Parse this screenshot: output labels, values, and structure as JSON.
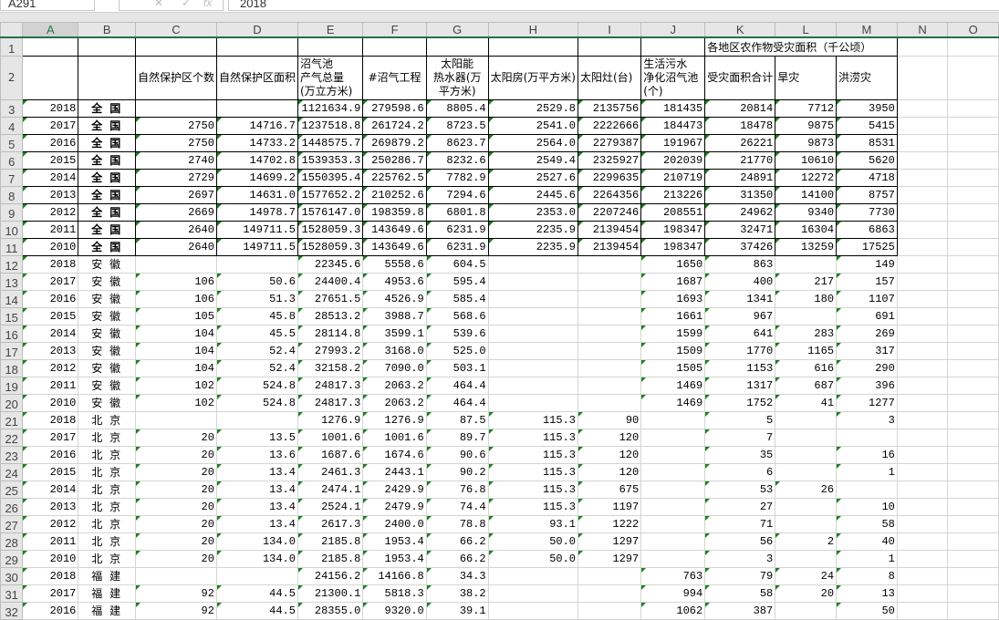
{
  "formula_bar": {
    "name_box": "A291",
    "cancel_icon": "✕",
    "enter_icon": "✓",
    "fx_label": "fx",
    "formula": "2018"
  },
  "columns": [
    "A",
    "B",
    "C",
    "D",
    "E",
    "F",
    "G",
    "H",
    "I",
    "J",
    "K",
    "L",
    "M",
    "N",
    "O"
  ],
  "selected_column": "A",
  "row1": {
    "K": "各地区农作物受灾面积（千公顷）"
  },
  "headers": {
    "C": "自然保护区个数",
    "D": "自然保护区面积",
    "E": "沼气池\n产气总量\n(万立方米)",
    "F": "#沼气工程",
    "G": "太阳能\n热水器(万\n平方米)",
    "H": "太阳房(万平方米)",
    "I": "太阳灶(台)",
    "J": "生活污水\n净化沼气池\n(个)",
    "K": "受灾面积合计",
    "L": "旱灾",
    "M": "洪涝灾"
  },
  "accent_color": "#217346",
  "rows": [
    [
      3,
      "2018",
      "全 国",
      "",
      "",
      "1121634.9",
      "279598.6",
      "8805.4",
      "2529.8",
      "2135756",
      "181435",
      "20814",
      "7712",
      "3950"
    ],
    [
      4,
      "2017",
      "全 国",
      "2750",
      "14716.7",
      "1237518.8",
      "261724.2",
      "8723.5",
      "2541.0",
      "2222666",
      "184473",
      "18478",
      "9875",
      "5415"
    ],
    [
      5,
      "2016",
      "全 国",
      "2750",
      "14733.2",
      "1448575.7",
      "269879.2",
      "8623.7",
      "2564.0",
      "2279387",
      "191967",
      "26221",
      "9873",
      "8531"
    ],
    [
      6,
      "2015",
      "全 国",
      "2740",
      "14702.8",
      "1539353.3",
      "250286.7",
      "8232.6",
      "2549.4",
      "2325927",
      "202039",
      "21770",
      "10610",
      "5620"
    ],
    [
      7,
      "2014",
      "全 国",
      "2729",
      "14699.2",
      "1550395.4",
      "225762.5",
      "7782.9",
      "2527.6",
      "2299635",
      "210719",
      "24891",
      "12272",
      "4718"
    ],
    [
      8,
      "2013",
      "全 国",
      "2697",
      "14631.0",
      "1577652.2",
      "210252.6",
      "7294.6",
      "2445.6",
      "2264356",
      "213226",
      "31350",
      "14100",
      "8757"
    ],
    [
      9,
      "2012",
      "全 国",
      "2669",
      "14978.7",
      "1576147.0",
      "198359.8",
      "6801.8",
      "2353.0",
      "2207246",
      "208551",
      "24962",
      "9340",
      "7730"
    ],
    [
      10,
      "2011",
      "全 国",
      "2640",
      "149711.5",
      "1528059.3",
      "143649.6",
      "6231.9",
      "2235.9",
      "2139454",
      "198347",
      "32471",
      "16304",
      "6863"
    ],
    [
      11,
      "2010",
      "全 国",
      "2640",
      "149711.5",
      "1528059.3",
      "143649.6",
      "6231.9",
      "2235.9",
      "2139454",
      "198347",
      "37426",
      "13259",
      "17525"
    ],
    [
      12,
      "2018",
      "安 徽",
      "",
      "",
      "22345.6",
      "5558.6",
      "604.5",
      "",
      "",
      "1650",
      "863",
      "",
      "149"
    ],
    [
      13,
      "2017",
      "安 徽",
      "106",
      "50.6",
      "24400.4",
      "4953.6",
      "595.4",
      "",
      "",
      "1687",
      "400",
      "217",
      "157"
    ],
    [
      14,
      "2016",
      "安 徽",
      "106",
      "51.3",
      "27651.5",
      "4526.9",
      "585.4",
      "",
      "",
      "1693",
      "1341",
      "180",
      "1107"
    ],
    [
      15,
      "2015",
      "安 徽",
      "105",
      "45.8",
      "28513.2",
      "3988.7",
      "568.6",
      "",
      "",
      "1661",
      "967",
      "",
      "691"
    ],
    [
      16,
      "2014",
      "安 徽",
      "104",
      "45.5",
      "28114.8",
      "3599.1",
      "539.6",
      "",
      "",
      "1599",
      "641",
      "283",
      "269"
    ],
    [
      17,
      "2013",
      "安 徽",
      "104",
      "52.4",
      "27993.2",
      "3168.0",
      "525.0",
      "",
      "",
      "1509",
      "1770",
      "1165",
      "317"
    ],
    [
      18,
      "2012",
      "安 徽",
      "104",
      "52.4",
      "32158.2",
      "7090.0",
      "503.1",
      "",
      "",
      "1505",
      "1153",
      "616",
      "290"
    ],
    [
      19,
      "2011",
      "安 徽",
      "102",
      "524.8",
      "24817.3",
      "2063.2",
      "464.4",
      "",
      "",
      "1469",
      "1317",
      "687",
      "396"
    ],
    [
      20,
      "2010",
      "安 徽",
      "102",
      "524.8",
      "24817.3",
      "2063.2",
      "464.4",
      "",
      "",
      "1469",
      "1752",
      "41",
      "1277"
    ],
    [
      21,
      "2018",
      "北 京",
      "",
      "",
      "1276.9",
      "1276.9",
      "87.5",
      "115.3",
      "90",
      "",
      "5",
      "",
      "3"
    ],
    [
      22,
      "2017",
      "北 京",
      "20",
      "13.5",
      "1001.6",
      "1001.6",
      "89.7",
      "115.3",
      "120",
      "",
      "7",
      "",
      ""
    ],
    [
      23,
      "2016",
      "北 京",
      "20",
      "13.6",
      "1687.6",
      "1674.6",
      "90.6",
      "115.3",
      "120",
      "",
      "35",
      "",
      "16"
    ],
    [
      24,
      "2015",
      "北 京",
      "20",
      "13.4",
      "2461.3",
      "2443.1",
      "90.2",
      "115.3",
      "120",
      "",
      "6",
      "",
      "1"
    ],
    [
      25,
      "2014",
      "北 京",
      "20",
      "13.4",
      "2474.1",
      "2429.9",
      "76.8",
      "115.3",
      "675",
      "",
      "53",
      "26",
      ""
    ],
    [
      26,
      "2013",
      "北 京",
      "20",
      "13.4",
      "2524.1",
      "2479.9",
      "74.4",
      "115.3",
      "1197",
      "",
      "27",
      "",
      "10"
    ],
    [
      27,
      "2012",
      "北 京",
      "20",
      "13.4",
      "2617.3",
      "2400.0",
      "78.8",
      "93.1",
      "1222",
      "",
      "71",
      "",
      "58"
    ],
    [
      28,
      "2011",
      "北 京",
      "20",
      "134.0",
      "2185.8",
      "1953.4",
      "66.2",
      "50.0",
      "1297",
      "",
      "56",
      "2",
      "40"
    ],
    [
      29,
      "2010",
      "北 京",
      "20",
      "134.0",
      "2185.8",
      "1953.4",
      "66.2",
      "50.0",
      "1297",
      "",
      "3",
      "",
      "1"
    ],
    [
      30,
      "2018",
      "福 建",
      "",
      "",
      "24156.2",
      "14166.8",
      "34.3",
      "",
      "",
      "763",
      "79",
      "24",
      "8"
    ],
    [
      31,
      "2017",
      "福 建",
      "92",
      "44.5",
      "21300.1",
      "5818.3",
      "38.2",
      "",
      "",
      "994",
      "58",
      "20",
      "13"
    ],
    [
      32,
      "2016",
      "福 建",
      "92",
      "44.5",
      "28355.0",
      "9320.0",
      "39.1",
      "",
      "",
      "1062",
      "387",
      "",
      "50"
    ]
  ]
}
